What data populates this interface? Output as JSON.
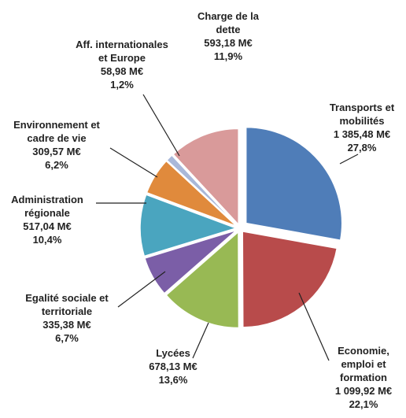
{
  "chart_data": {
    "type": "pie",
    "categories": [
      "Transports et mobilités",
      "Economie, emploi et formation",
      "Lycées",
      "Egalité sociale et territoriale",
      "Administration régionale",
      "Environnement et cadre de vie",
      "Aff. internationales et Europe",
      "Charge de la dette"
    ],
    "values": [
      1385.48,
      1099.92,
      678.13,
      335.38,
      517.04,
      309.57,
      58.98,
      593.18
    ],
    "value_labels": [
      "1 385,48 M€",
      "1 099,92 M€",
      "678,13 M€",
      "335,38 M€",
      "517,04 M€",
      "309,57 M€",
      "58,98 M€",
      "593,18 M€"
    ],
    "percents": [
      27.8,
      22.1,
      13.6,
      6.7,
      10.4,
      6.2,
      1.2,
      11.9
    ],
    "percent_labels": [
      "27,8%",
      "22,1%",
      "13,6%",
      "6,7%",
      "10,4%",
      "6,2%",
      "1,2%",
      "11,9%"
    ],
    "colors": [
      "#4f7db8",
      "#b84b4b",
      "#98b954",
      "#7b5ea7",
      "#4aa5bf",
      "#e08a3c",
      "#a9b8d9",
      "#d99a9a"
    ]
  }
}
